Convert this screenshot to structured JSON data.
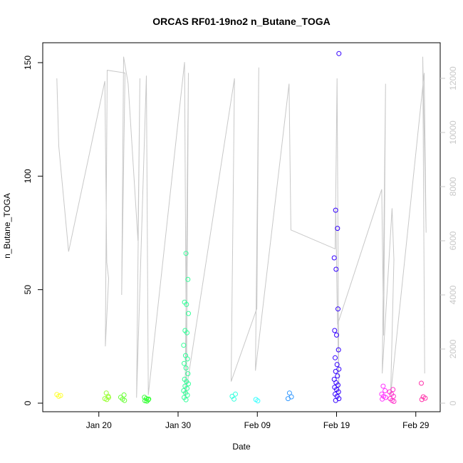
{
  "chart_data": {
    "type": "scatter",
    "title": "ORCAS RF01-19no2 n_Butane_TOGA",
    "xlabel": "Date",
    "ylabel": "n_Butane_TOGA",
    "x_start": "2016-01-15",
    "x_end": "2016-03-01",
    "xlim": [
      "2016-01-14",
      "2016-03-02"
    ],
    "ylim": [
      0,
      155
    ],
    "x_ticks": [
      {
        "date": "2016-01-20",
        "label": "Jan 20"
      },
      {
        "date": "2016-01-30",
        "label": "Jan 30"
      },
      {
        "date": "2016-02-09",
        "label": "Feb 09"
      },
      {
        "date": "2016-02-19",
        "label": "Feb 19"
      },
      {
        "date": "2016-02-29",
        "label": "Feb 29"
      }
    ],
    "y_ticks": [
      0,
      50,
      100,
      150
    ],
    "right_axis": {
      "ticks": [
        0,
        2000,
        4000,
        6000,
        8000,
        10000,
        12000
      ],
      "range": [
        0,
        13000
      ],
      "color": "#c8c8c8"
    },
    "series": [
      {
        "color": "#ffff33",
        "points": [
          [
            "2016-01-15",
            3.8
          ],
          [
            "2016-01-15",
            3.0
          ],
          [
            "2016-01-15",
            3.4
          ]
        ]
      },
      {
        "color": "#99ff33",
        "points": [
          [
            "2016-01-21",
            4.5
          ],
          [
            "2016-01-21",
            3.0
          ],
          [
            "2016-01-21",
            2.0
          ],
          [
            "2016-01-21",
            1.6
          ],
          [
            "2016-01-21",
            2.5
          ]
        ]
      },
      {
        "color": "#66ff33",
        "points": [
          [
            "2016-01-23",
            3.6
          ],
          [
            "2016-01-23",
            2.6
          ],
          [
            "2016-01-23",
            1.8
          ],
          [
            "2016-01-23",
            1.2
          ]
        ]
      },
      {
        "color": "#33ff33",
        "points": [
          [
            "2016-01-26",
            2.6
          ],
          [
            "2016-01-26",
            2.0
          ],
          [
            "2016-01-26",
            1.5
          ],
          [
            "2016-01-26",
            1.1
          ],
          [
            "2016-01-26",
            0.9
          ],
          [
            "2016-01-26",
            1.8
          ]
        ]
      },
      {
        "color": "#33ff99",
        "points": [
          [
            "2016-01-31",
            66
          ],
          [
            "2016-01-31",
            54.5
          ],
          [
            "2016-01-31",
            44.5
          ],
          [
            "2016-01-31",
            43.5
          ],
          [
            "2016-01-31",
            39.5
          ],
          [
            "2016-01-31",
            32
          ],
          [
            "2016-01-31",
            31
          ],
          [
            "2016-01-31",
            25.5
          ],
          [
            "2016-01-31",
            21
          ],
          [
            "2016-01-31",
            19.5
          ],
          [
            "2016-01-31",
            17.5
          ],
          [
            "2016-01-31",
            15.5
          ],
          [
            "2016-01-31",
            13
          ],
          [
            "2016-01-31",
            10.5
          ],
          [
            "2016-01-31",
            9.5
          ],
          [
            "2016-01-31",
            8.5
          ],
          [
            "2016-01-31",
            7.5
          ],
          [
            "2016-01-31",
            6.5
          ],
          [
            "2016-01-31",
            5.5
          ],
          [
            "2016-01-31",
            4.5
          ],
          [
            "2016-01-31",
            3.5
          ],
          [
            "2016-01-31",
            2.5
          ],
          [
            "2016-01-31",
            1.5
          ]
        ]
      },
      {
        "color": "#33ffdd",
        "points": [
          [
            "2016-02-06",
            4.0
          ],
          [
            "2016-02-06",
            3.0
          ],
          [
            "2016-02-06",
            1.8
          ]
        ]
      },
      {
        "color": "#33ffff",
        "points": [
          [
            "2016-02-09",
            1.6
          ],
          [
            "2016-02-09",
            1.0
          ]
        ]
      },
      {
        "color": "#3399ff",
        "points": [
          [
            "2016-02-13",
            4.5
          ],
          [
            "2016-02-13",
            2.8
          ],
          [
            "2016-02-13",
            2.0
          ]
        ]
      },
      {
        "color": "#3300ff",
        "points": [
          [
            "2016-02-19",
            154
          ],
          [
            "2016-02-19",
            85
          ],
          [
            "2016-02-19",
            77
          ],
          [
            "2016-02-19",
            64
          ],
          [
            "2016-02-19",
            59
          ],
          [
            "2016-02-19",
            41.5
          ],
          [
            "2016-02-19",
            32
          ],
          [
            "2016-02-19",
            30
          ],
          [
            "2016-02-19",
            23.5
          ],
          [
            "2016-02-19",
            20
          ],
          [
            "2016-02-19",
            17
          ],
          [
            "2016-02-19",
            15
          ],
          [
            "2016-02-19",
            14
          ],
          [
            "2016-02-19",
            12
          ],
          [
            "2016-02-19",
            10.5
          ],
          [
            "2016-02-19",
            9
          ],
          [
            "2016-02-19",
            8
          ],
          [
            "2016-02-19",
            7
          ],
          [
            "2016-02-19",
            6
          ],
          [
            "2016-02-19",
            5
          ],
          [
            "2016-02-19",
            4
          ],
          [
            "2016-02-19",
            3
          ],
          [
            "2016-02-19",
            2
          ],
          [
            "2016-02-19",
            1.2
          ]
        ]
      },
      {
        "color": "#ff33ff",
        "points": [
          [
            "2016-02-25",
            7.5
          ],
          [
            "2016-02-25",
            5.5
          ],
          [
            "2016-02-25",
            4.0
          ],
          [
            "2016-02-25",
            3.0
          ],
          [
            "2016-02-25",
            2.5
          ],
          [
            "2016-02-25",
            1.8
          ]
        ]
      },
      {
        "color": "#ff33cc",
        "points": [
          [
            "2016-02-26",
            6.0
          ],
          [
            "2016-02-26",
            5.0
          ],
          [
            "2016-02-26",
            4.0
          ],
          [
            "2016-02-26",
            3.0
          ],
          [
            "2016-02-26",
            2.0
          ],
          [
            "2016-02-26",
            1.2
          ],
          [
            "2016-02-26",
            0.8
          ]
        ]
      },
      {
        "color": "#ff33aa",
        "points": [
          [
            "2016-03-01",
            8.8
          ],
          [
            "2016-03-01",
            2.8
          ],
          [
            "2016-03-01",
            2.2
          ],
          [
            "2016-03-01",
            1.6
          ]
        ]
      }
    ],
    "overlay_line": {
      "color": "#c8c8c8",
      "axis": "right",
      "points": [
        [
          "2016-01-15",
          12000
        ],
        [
          "2016-01-15",
          9500
        ],
        [
          "2016-01-16",
          5600
        ],
        [
          "2016-01-21",
          11900
        ],
        [
          "2016-01-21",
          5200
        ],
        [
          "2016-01-21",
          4600
        ],
        [
          "2016-01-21",
          2100
        ],
        [
          "2016-01-21",
          12300
        ],
        [
          "2016-01-23",
          12200
        ],
        [
          "2016-01-23",
          4000
        ],
        [
          "2016-01-23",
          12800
        ],
        [
          "2016-01-24",
          11800
        ],
        [
          "2016-01-25",
          6000
        ],
        [
          "2016-01-25",
          12000
        ],
        [
          "2016-01-25",
          200
        ],
        [
          "2016-01-26",
          12100
        ],
        [
          "2016-01-26",
          300
        ],
        [
          "2016-01-31",
          12600
        ],
        [
          "2016-01-31",
          400
        ],
        [
          "2016-01-31",
          12200
        ],
        [
          "2016-01-31",
          200
        ],
        [
          "2016-02-06",
          12000
        ],
        [
          "2016-02-06",
          800
        ],
        [
          "2016-02-09",
          3500
        ],
        [
          "2016-02-09",
          12400
        ],
        [
          "2016-02-09",
          1200
        ],
        [
          "2016-02-13",
          11800
        ],
        [
          "2016-02-13",
          6400
        ],
        [
          "2016-02-19",
          5700
        ],
        [
          "2016-02-19",
          12000
        ],
        [
          "2016-02-19",
          300
        ],
        [
          "2016-02-19",
          7400
        ],
        [
          "2016-02-19",
          2900
        ],
        [
          "2016-02-25",
          7900
        ],
        [
          "2016-02-25",
          2500
        ],
        [
          "2016-02-25",
          11800
        ],
        [
          "2016-02-25",
          1100
        ],
        [
          "2016-02-26",
          7200
        ],
        [
          "2016-02-26",
          5300
        ],
        [
          "2016-02-26",
          300
        ],
        [
          "2016-03-01",
          12200
        ],
        [
          "2016-03-01",
          6300
        ],
        [
          "2016-03-01",
          12800
        ],
        [
          "2016-03-01",
          1100
        ]
      ]
    }
  }
}
